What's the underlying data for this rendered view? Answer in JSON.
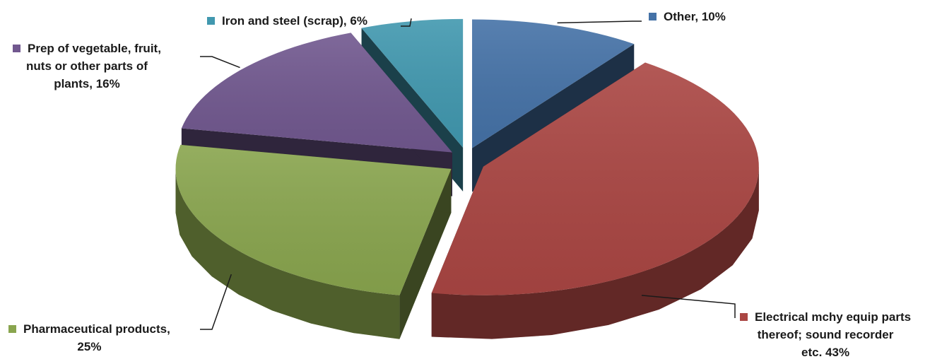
{
  "chart_data": {
    "type": "pie",
    "variant": "3d-exploded",
    "title": "",
    "legend": "none",
    "slices": [
      {
        "label": "Other, 10%",
        "label_lines": [
          "Other, 10%"
        ],
        "value": 10,
        "color": "#4572A7"
      },
      {
        "label": "Electrical mchy equip parts thereof; sound recorder etc. 43%",
        "label_lines": [
          "Electrical mchy equip parts",
          "thereof; sound recorder",
          "etc. 43%"
        ],
        "value": 43,
        "color": "#AA4643"
      },
      {
        "label": "Pharmaceutical products, 25%",
        "label_lines": [
          "Pharmaceutical products,",
          "25%"
        ],
        "value": 25,
        "color": "#89A54E"
      },
      {
        "label": "Prep of vegetable, fruit, nuts or other parts of plants, 16%",
        "label_lines": [
          "Prep of vegetable, fruit,",
          "nuts or other parts of",
          "plants, 16%"
        ],
        "value": 16,
        "color": "#71588F"
      },
      {
        "label": "Iron and steel (scrap), 6%",
        "label_lines": [
          "Iron and steel (scrap), 6%"
        ],
        "value": 6,
        "color": "#4198AF"
      }
    ]
  }
}
